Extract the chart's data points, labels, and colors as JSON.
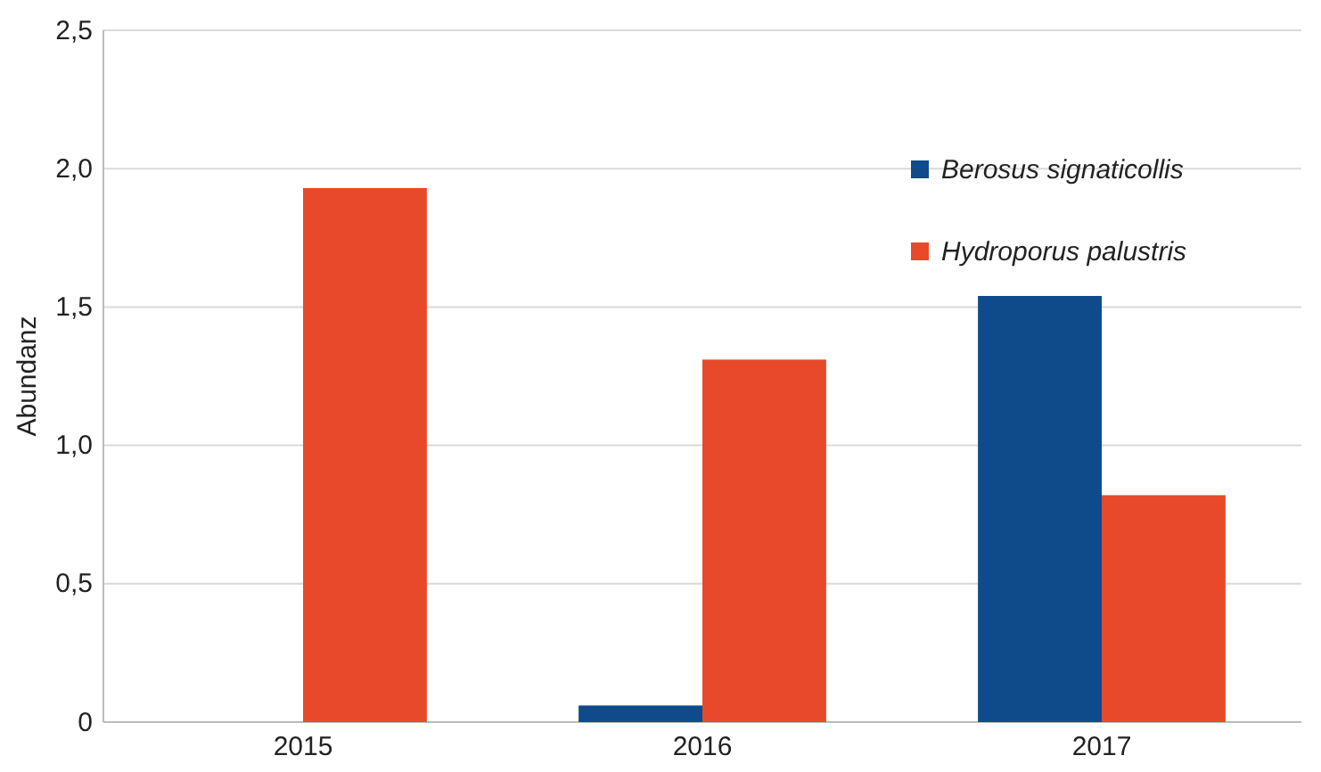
{
  "chart_data": {
    "type": "bar",
    "ylabel": "Abundanz",
    "categories": [
      "2015",
      "2016",
      "2017"
    ],
    "series": [
      {
        "name": "Berosus signaticollis",
        "color": "#0f4a8a",
        "values": [
          0,
          0.06,
          1.54
        ]
      },
      {
        "name": "Hydroporus palustris",
        "color": "#e8492a",
        "values": [
          1.93,
          1.31,
          0.82
        ]
      }
    ],
    "ylim": [
      0,
      2.5
    ],
    "yticks": [
      0,
      {
        "value": 0.5,
        "label": "0,5"
      },
      {
        "value": 1,
        "label": "1,0"
      },
      {
        "value": 1.5,
        "label": "1,5"
      },
      {
        "value": 2,
        "label": "2,0"
      },
      {
        "value": 2.5,
        "label": "2,5"
      }
    ],
    "grid": "y",
    "legend": "top right"
  }
}
